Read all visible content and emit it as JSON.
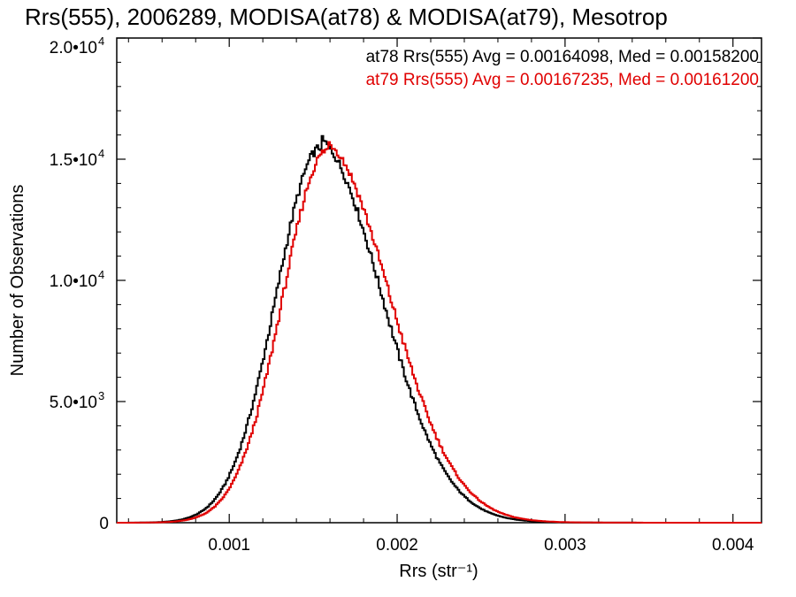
{
  "chart_data": {
    "type": "histogram",
    "title": "Rrs(555), 2006289, MODISA(at78) & MODISA(at79), Mesotrop",
    "xlabel": "Rrs (str⁻¹)",
    "ylabel": "Number of Observations",
    "xlim": [
      0.00033,
      0.00417
    ],
    "ylim": [
      0,
      20000
    ],
    "x_ticks": [
      {
        "value": 0.001,
        "label": "0.001"
      },
      {
        "value": 0.002,
        "label": "0.002"
      },
      {
        "value": 0.003,
        "label": "0.003"
      },
      {
        "value": 0.004,
        "label": "0.004"
      }
    ],
    "y_ticks": [
      {
        "value": 0,
        "label": "0"
      },
      {
        "value": 5000,
        "label": "5.0•10",
        "exp": "3"
      },
      {
        "value": 10000,
        "label": "1.0•10",
        "exp": "4"
      },
      {
        "value": 15000,
        "label": "1.5•10",
        "exp": "4"
      },
      {
        "value": 20000,
        "label": "2.0•10",
        "exp": "4"
      }
    ],
    "grid": false,
    "legend_position": "top-right",
    "series": [
      {
        "name": "at78",
        "legend_text": "at78 Rrs(555) Avg = 0.00164098, Med = 0.00158200",
        "color": "#000000",
        "peak": 15500,
        "mode": 0.00155,
        "sigma_left": 0.00027,
        "sigma_right": 0.00037,
        "tail_scale": 0.00028
      },
      {
        "name": "at79",
        "legend_text": "at79 Rrs(555) Avg = 0.00167235, Med = 0.00161200",
        "color": "#e00000",
        "peak": 15400,
        "mode": 0.00159,
        "sigma_left": 0.00027,
        "sigma_right": 0.00038,
        "tail_scale": 0.00028
      }
    ],
    "bin_width": 1e-05
  }
}
